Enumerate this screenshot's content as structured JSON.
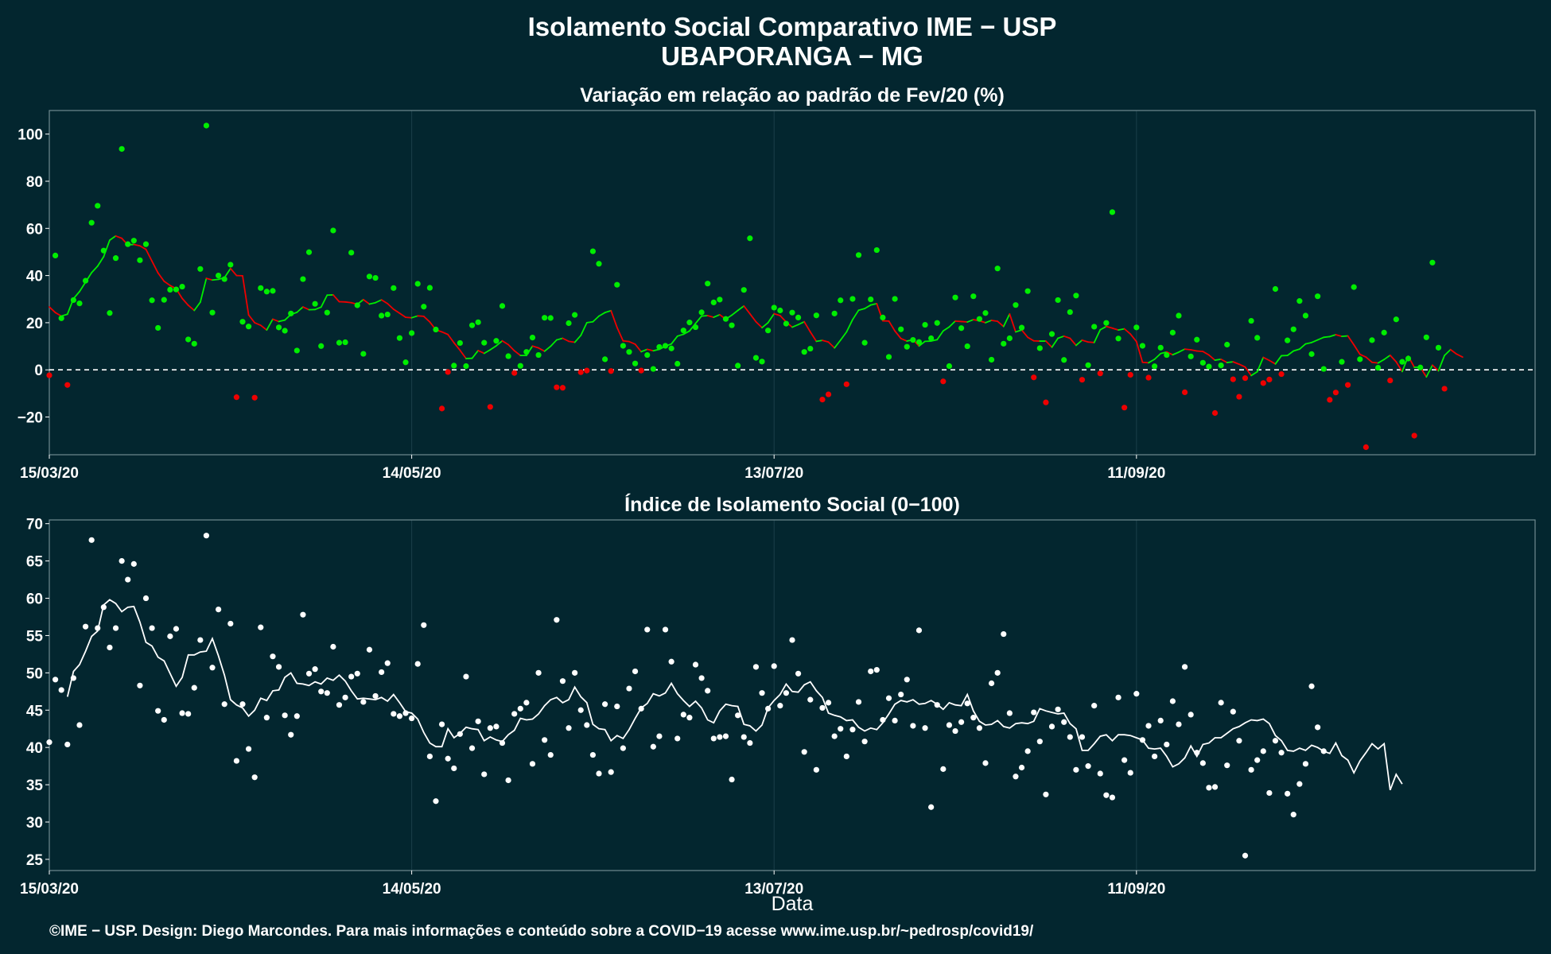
{
  "title_line1": "Isolamento Social Comparativo IME − USP",
  "title_line2": "UBAPORANGA − MG",
  "x_axis_label": "Data",
  "footer": "©IME − USP. Design: Diego Marcondes. Para mais informações e conteúdo sobre a COVID−19 acesse www.ime.usp.br/~pedrosp/covid19/",
  "colors": {
    "background": "#03262f",
    "panel_border": "#6f8a90",
    "gridline": "#1b3f49",
    "positive": "#00ee00",
    "negative": "#ee0000",
    "index_points": "#ffffff",
    "zero_line": "#ffffff"
  },
  "chart_data": [
    {
      "type": "scatter",
      "title": "Variação em relação ao padrão de Fev/20 (%)",
      "xlabel": "",
      "ylabel": "",
      "x_start_date": "15/03/20",
      "x_end_date": "16/11/20",
      "x_tick_labels": [
        "15/03/20",
        "14/05/20",
        "13/07/20",
        "11/09/20"
      ],
      "x_tick_days": [
        0,
        60,
        120,
        180
      ],
      "y_ticks": [
        -20,
        0,
        20,
        40,
        60,
        80,
        100
      ],
      "ylim": [
        -36,
        110
      ],
      "reference_line": {
        "y": 0,
        "style": "dashed"
      },
      "series": [
        {
          "values": [
            -2.3,
            48.5,
            21.9,
            -6.4,
            29.6,
            28.2,
            37.8,
            62.4,
            69.6,
            50.6,
            24.1,
            47.4,
            93.7,
            53.3,
            54.8,
            46.5,
            53.3,
            29.5,
            17.8,
            29.7,
            34.0,
            34.1,
            35.3,
            12.9,
            11.1,
            42.8,
            103.6,
            24.3,
            40.0,
            38.5,
            44.6,
            -11.6,
            20.4,
            18.4,
            -11.8,
            34.7,
            33.2,
            33.5,
            18.0,
            16.6,
            23.9,
            8.2,
            38.5,
            49.9,
            28.0,
            10.1,
            24.3,
            59.1,
            11.5,
            11.7,
            49.7,
            27.4,
            6.8,
            39.6,
            39.0,
            23.0,
            23.5,
            34.7,
            13.5,
            3.2,
            15.6,
            36.5,
            26.8,
            34.8,
            17.1,
            -16.4,
            -0.9,
            1.8,
            11.4,
            1.6,
            18.9,
            20.2,
            11.5,
            -15.7,
            12.3,
            27.1,
            5.8,
            -1.3,
            1.7,
            7.6,
            13.7,
            6.3,
            22.1,
            22.0,
            -7.4,
            -7.6,
            19.8,
            23.3,
            -1.0,
            -0.3,
            50.3,
            45.0,
            4.5,
            -0.5,
            36.1,
            10.2,
            7.6,
            2.7,
            -0.3,
            6.3,
            0.4,
            9.7,
            10.2,
            9.1,
            2.6,
            16.7,
            20.1,
            18.1,
            24.4,
            36.6,
            28.6,
            29.8,
            21.6,
            18.9,
            1.8,
            33.9,
            55.8,
            5.1,
            3.5,
            16.7,
            26.4,
            25.2,
            19.6,
            24.3,
            22.2,
            7.6,
            9.0,
            23.1,
            -12.6,
            -10.4,
            23.9,
            29.5,
            -6.1,
            30.1,
            48.7,
            11.5,
            29.9,
            50.8,
            22.2,
            5.5,
            30.1,
            17.2,
            9.8,
            12.7,
            11.8,
            19.1,
            13.4,
            19.9,
            -4.9,
            1.6,
            30.7,
            17.7,
            10.0,
            31.2,
            21.6,
            24.1,
            4.3,
            43.0,
            11.1,
            13.4,
            27.5,
            17.9,
            33.4,
            -3.2,
            9.2,
            -13.8,
            15.2,
            29.6,
            4.2,
            24.5,
            31.5,
            -4.2,
            2.0,
            18.3,
            -1.5,
            19.9,
            66.9,
            13.3,
            -16.0,
            -2.1,
            18.0,
            10.2,
            -3.3,
            1.5,
            9.4,
            6.3,
            15.8,
            23.0,
            -9.5,
            5.7,
            12.8,
            3.0,
            1.4,
            -18.3,
            1.9,
            10.7,
            -4.0,
            -11.4,
            -3.5,
            20.8,
            13.6,
            -5.6,
            -4.1,
            34.3,
            -1.8,
            12.5,
            17.2,
            29.2,
            23.0,
            6.7,
            31.2,
            0.4,
            -12.7,
            -9.6,
            3.4,
            -6.4,
            35.1,
            4.5,
            -32.8,
            12.6,
            0.9,
            15.8,
            -4.5,
            21.4,
            3.4,
            4.8,
            -27.9,
            1.0,
            13.8,
            45.5,
            9.4,
            -8.0
          ]
        }
      ],
      "moving_average": {
        "start_day": 0,
        "values": [
          26.7,
          24.3,
          22.8,
          23.6,
          30.2,
          33.2,
          37.2,
          41.2,
          44.0,
          48.0,
          55.0,
          56.8,
          55.8,
          53.0,
          53.2,
          52.6,
          51.1,
          46.1,
          41.1,
          37.6,
          35.8,
          34.4,
          30.3,
          27.4,
          25.2,
          28.7,
          38.8,
          38.1,
          38.4,
          39.1,
          43.0,
          40.0,
          39.9,
          23.3,
          20.0,
          18.9,
          16.9,
          21.5,
          20.5,
          21.1,
          23.5,
          24.4,
          26.7,
          25.5,
          25.6,
          26.6,
          31.7,
          31.8,
          28.9,
          28.8,
          28.5,
          27.8,
          29.8,
          27.9,
          28.5,
          29.7,
          28.1,
          25.7,
          24.0,
          22.3,
          22.1,
          22.9,
          22.7,
          20.3,
          17.0,
          16.1,
          15.0,
          11.5,
          8.3,
          4.8,
          4.9,
          8.2,
          7.0,
          8.5,
          10.2,
          12.3,
          10.7,
          8.1,
          6.1,
          6.1,
          10.1,
          9.3,
          7.9,
          10.0,
          12.7,
          13.4,
          12.1,
          11.7,
          14.6,
          20.0,
          20.4,
          22.8,
          24.3,
          25.1,
          18.0,
          12.3,
          12.0,
          10.9,
          7.7,
          8.7,
          8.1,
          8.7,
          10.0,
          11.0,
          14.3,
          15.1,
          16.5,
          19.7,
          22.8,
          23.0,
          22.3,
          23.4,
          21.5,
          23.2,
          25.2,
          27.1,
          23.8,
          20.4,
          17.9,
          20.0,
          23.8,
          23.0,
          20.3,
          18.1,
          19.2,
          20.4,
          16.1,
          12.1,
          12.5,
          11.8,
          9.3,
          12.6,
          16.1,
          21.3,
          25.3,
          26.0,
          27.5,
          28.1,
          20.8,
          20.7,
          16.5,
          13.3,
          12.2,
          12.8,
          10.1,
          12.1,
          12.2,
          12.8,
          16.5,
          18.2,
          20.7,
          20.5,
          20.3,
          21.3,
          20.8,
          20.0,
          21.0,
          20.6,
          18.4,
          23.7,
          16.1,
          16.9,
          13.8,
          12.3,
          12.2,
          12.2,
          9.6,
          13.4,
          14.3,
          13.4,
          10.4,
          12.6,
          11.8,
          11.6,
          17.0,
          18.4,
          17.7,
          16.9,
          17.4,
          15.2,
          12.0,
          3.2,
          3.0,
          4.5,
          6.9,
          7.6,
          6.4,
          7.5,
          8.8,
          8.5,
          8.0,
          7.8,
          6.3,
          4.1,
          4.5,
          3.1,
          3.4,
          2.4,
          1.2,
          -2.4,
          -0.8,
          5.3,
          4.0,
          2.5,
          6.0,
          6.1,
          8.0,
          8.8,
          11.0,
          11.6,
          12.7,
          13.8,
          14.1,
          14.9,
          14.2,
          14.4,
          10.6,
          6.6,
          5.4,
          3.2,
          2.9,
          4.4,
          6.2,
          3.4,
          -0.7,
          5.8,
          1.1,
          1.1,
          -3.0,
          2.0,
          -0.4,
          6.1,
          8.6,
          6.7,
          5.4
        ]
      }
    },
    {
      "type": "scatter",
      "title": "Índice de Isolamento Social (0−100)",
      "xlabel": "Data",
      "ylabel": "",
      "x_start_date": "15/03/20",
      "x_end_date": "16/11/20",
      "x_tick_labels": [
        "15/03/20",
        "14/05/20",
        "13/07/20",
        "11/09/20"
      ],
      "x_tick_days": [
        0,
        60,
        120,
        180
      ],
      "y_ticks": [
        25,
        30,
        35,
        40,
        45,
        50,
        55,
        60,
        65,
        70
      ],
      "ylim": [
        23.5,
        70.5
      ],
      "series": [
        {
          "values": [
            40.7,
            49.1,
            47.7,
            40.4,
            49.3,
            43.0,
            56.2,
            67.8,
            56.0,
            58.8,
            53.4,
            56.0,
            65.0,
            62.5,
            64.6,
            48.3,
            60.0,
            56.0,
            44.9,
            43.7,
            54.9,
            55.9,
            44.6,
            44.5,
            48.0,
            54.4,
            68.4,
            50.7,
            58.5,
            45.8,
            56.6,
            38.2,
            45.8,
            39.8,
            36.0,
            56.1,
            44.0,
            52.2,
            50.8,
            44.3,
            41.7,
            44.2,
            57.8,
            49.9,
            50.5,
            47.5,
            47.3,
            53.5,
            45.7,
            46.7,
            49.5,
            49.9,
            46.1,
            53.1,
            46.9,
            50.1,
            51.3,
            44.5,
            44.2,
            44.6,
            43.9,
            51.2,
            56.4,
            38.8,
            32.8,
            43.1,
            38.5,
            37.2,
            41.8,
            49.5,
            39.9,
            43.5,
            36.4,
            42.6,
            42.8,
            40.6,
            35.6,
            44.5,
            45.2,
            46.0,
            37.8,
            50.0,
            41.0,
            39.0,
            57.1,
            48.9,
            42.6,
            50.0,
            45.0,
            43.0,
            39.0,
            36.5,
            45.8,
            36.7,
            45.5,
            39.9,
            47.9,
            50.2,
            45.2,
            55.8,
            40.1,
            41.5,
            55.8,
            51.5,
            41.2,
            44.4,
            44.0,
            51.1,
            49.3,
            47.6,
            41.2,
            41.4,
            41.5,
            35.7,
            44.3,
            41.4,
            40.6,
            50.8,
            47.3,
            45.2,
            50.9,
            45.6,
            47.3,
            54.4,
            49.9,
            39.4,
            46.4,
            37.0,
            45.3,
            46.0,
            41.5,
            42.5,
            38.8,
            42.4,
            46.1,
            40.8,
            50.2,
            50.4,
            43.7,
            46.6,
            43.6,
            47.1,
            49.1,
            42.9,
            55.7,
            42.6,
            32.0,
            45.7,
            37.1,
            43.0,
            42.2,
            43.4,
            45.9,
            44.0,
            42.6,
            37.9,
            48.6,
            50.0,
            55.2,
            44.6,
            36.1,
            37.3,
            39.5,
            44.7,
            40.8,
            33.7,
            42.8,
            45.1,
            43.4,
            41.4,
            37.0,
            41.4,
            37.5,
            45.6,
            36.5,
            33.6,
            33.3,
            46.7,
            38.3,
            36.6,
            47.2,
            41.0,
            42.9,
            38.8,
            43.6,
            40.4,
            46.2,
            43.1,
            50.8,
            44.4,
            39.3,
            37.9,
            34.6,
            34.7,
            46.0,
            37.6,
            44.8,
            40.9,
            25.5,
            37.0,
            38.3,
            39.5,
            33.9,
            40.9,
            39.3,
            33.8,
            31.0,
            35.1,
            37.8,
            48.2,
            42.7,
            39.5
          ]
        }
      ],
      "moving_average": {
        "start_day": 3,
        "values": [
          46.8,
          50.2,
          51.1,
          52.9,
          54.9,
          55.6,
          59.1,
          59.8,
          59.3,
          58.2,
          58.8,
          58.9,
          56.8,
          54.1,
          53.6,
          52.1,
          51.6,
          49.9,
          48.2,
          49.4,
          52.4,
          52.4,
          52.8,
          52.9,
          54.6,
          52.3,
          49.7,
          46.4,
          45.7,
          45.3,
          44.2,
          45.0,
          46.6,
          46.3,
          47.6,
          47.7,
          49.4,
          50.0,
          48.6,
          48.5,
          48.3,
          48.8,
          48.5,
          49.3,
          49.0,
          49.7,
          48.9,
          47.6,
          46.5,
          46.6,
          46.5,
          46.4,
          46.7,
          46.2,
          47.1,
          46.0,
          44.8,
          44.6,
          43.8,
          42.0,
          40.6,
          40.1,
          40.1,
          42.5,
          41.3,
          41.9,
          42.7,
          42.5,
          42.4,
          40.9,
          41.4,
          41.0,
          40.8,
          41.7,
          42.3,
          43.9,
          43.7,
          43.8,
          44.5,
          45.6,
          46.4,
          46.7,
          46.0,
          46.4,
          48.1,
          46.8,
          46.0,
          43.1,
          42.5,
          42.4,
          40.9,
          41.6,
          41.2,
          42.4,
          43.9,
          45.3,
          45.9,
          47.2,
          46.9,
          47.3,
          48.6,
          47.2,
          46.3,
          45.5,
          46.2,
          45.3,
          43.7,
          43.3,
          44.9,
          45.8,
          45.6,
          45.5,
          43.1,
          42.9,
          42.2,
          43.0,
          45.3,
          46.3,
          47.1,
          48.5,
          47.5,
          47.4,
          48.4,
          48.8,
          47.6,
          46.7,
          44.6,
          44.3,
          44.1,
          43.6,
          43.7,
          42.7,
          42.2,
          42.6,
          42.4,
          43.3,
          44.5,
          45.8,
          46.3,
          46.1,
          46.4,
          45.8,
          45.9,
          46.3,
          45.8,
          45.1,
          46.0,
          45.7,
          45.6,
          47.1,
          44.9,
          43.5,
          43.0,
          43.1,
          43.6,
          42.8,
          42.6,
          43.2,
          43.3,
          43.2,
          43.5,
          45.2,
          44.9,
          44.7,
          44.5,
          44.6,
          43.2,
          42.5,
          39.6,
          39.6,
          40.5,
          41.5,
          41.7,
          40.9,
          41.7,
          41.7,
          41.6,
          41.3,
          41.0,
          39.9,
          39.8,
          39.9,
          38.8,
          37.4,
          37.8,
          38.6,
          40.2,
          38.8,
          40.4,
          40.6,
          41.3,
          41.3,
          41.9,
          42.5,
          42.8,
          43.3,
          43.7,
          43.6,
          43.8,
          43.2,
          41.6,
          40.9,
          39.6,
          39.5,
          39.9,
          39.6,
          40.3,
          40.0,
          39.5,
          39.2,
          40.6,
          38.9,
          38.3,
          36.6,
          38.2,
          39.3,
          40.5,
          39.8,
          40.5,
          34.3,
          36.4,
          35.1
        ]
      }
    }
  ]
}
